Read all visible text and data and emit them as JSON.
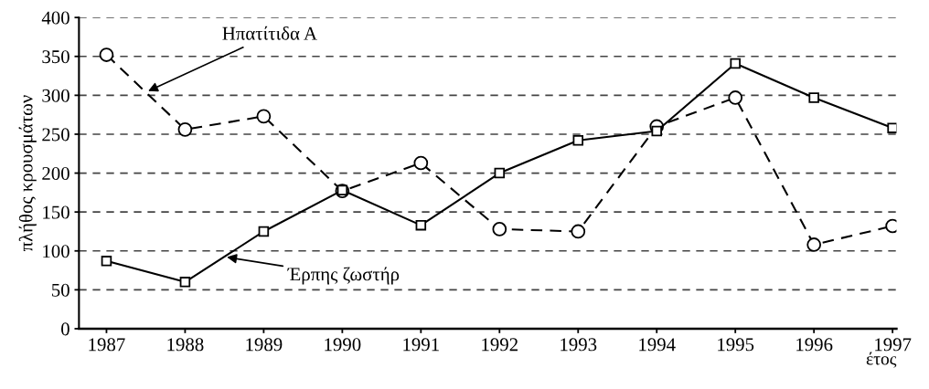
{
  "chart_data": {
    "type": "line",
    "xlabel": "έτος",
    "ylabel": "πλήθος κρουσμάτων",
    "categories": [
      "1987",
      "1988",
      "1989",
      "1990",
      "1991",
      "1992",
      "1993",
      "1994",
      "1995",
      "1996",
      "1997"
    ],
    "series": [
      {
        "name": "Ηπατίτιδα Α",
        "color": "#000000",
        "marker": "circle",
        "line_style": "dashed",
        "values": [
          352,
          256,
          273,
          177,
          213,
          128,
          125,
          260,
          297,
          108,
          132
        ]
      },
      {
        "name": "Έρπης ζωστήρ",
        "color": "#000000",
        "marker": "square",
        "line_style": "solid",
        "values": [
          87,
          60,
          125,
          178,
          133,
          200,
          242,
          254,
          341,
          297,
          258
        ]
      }
    ],
    "ylim": [
      0,
      400
    ],
    "yticks": [
      0,
      50,
      100,
      150,
      200,
      250,
      300,
      350,
      400
    ],
    "grid": "y",
    "legend": false
  }
}
